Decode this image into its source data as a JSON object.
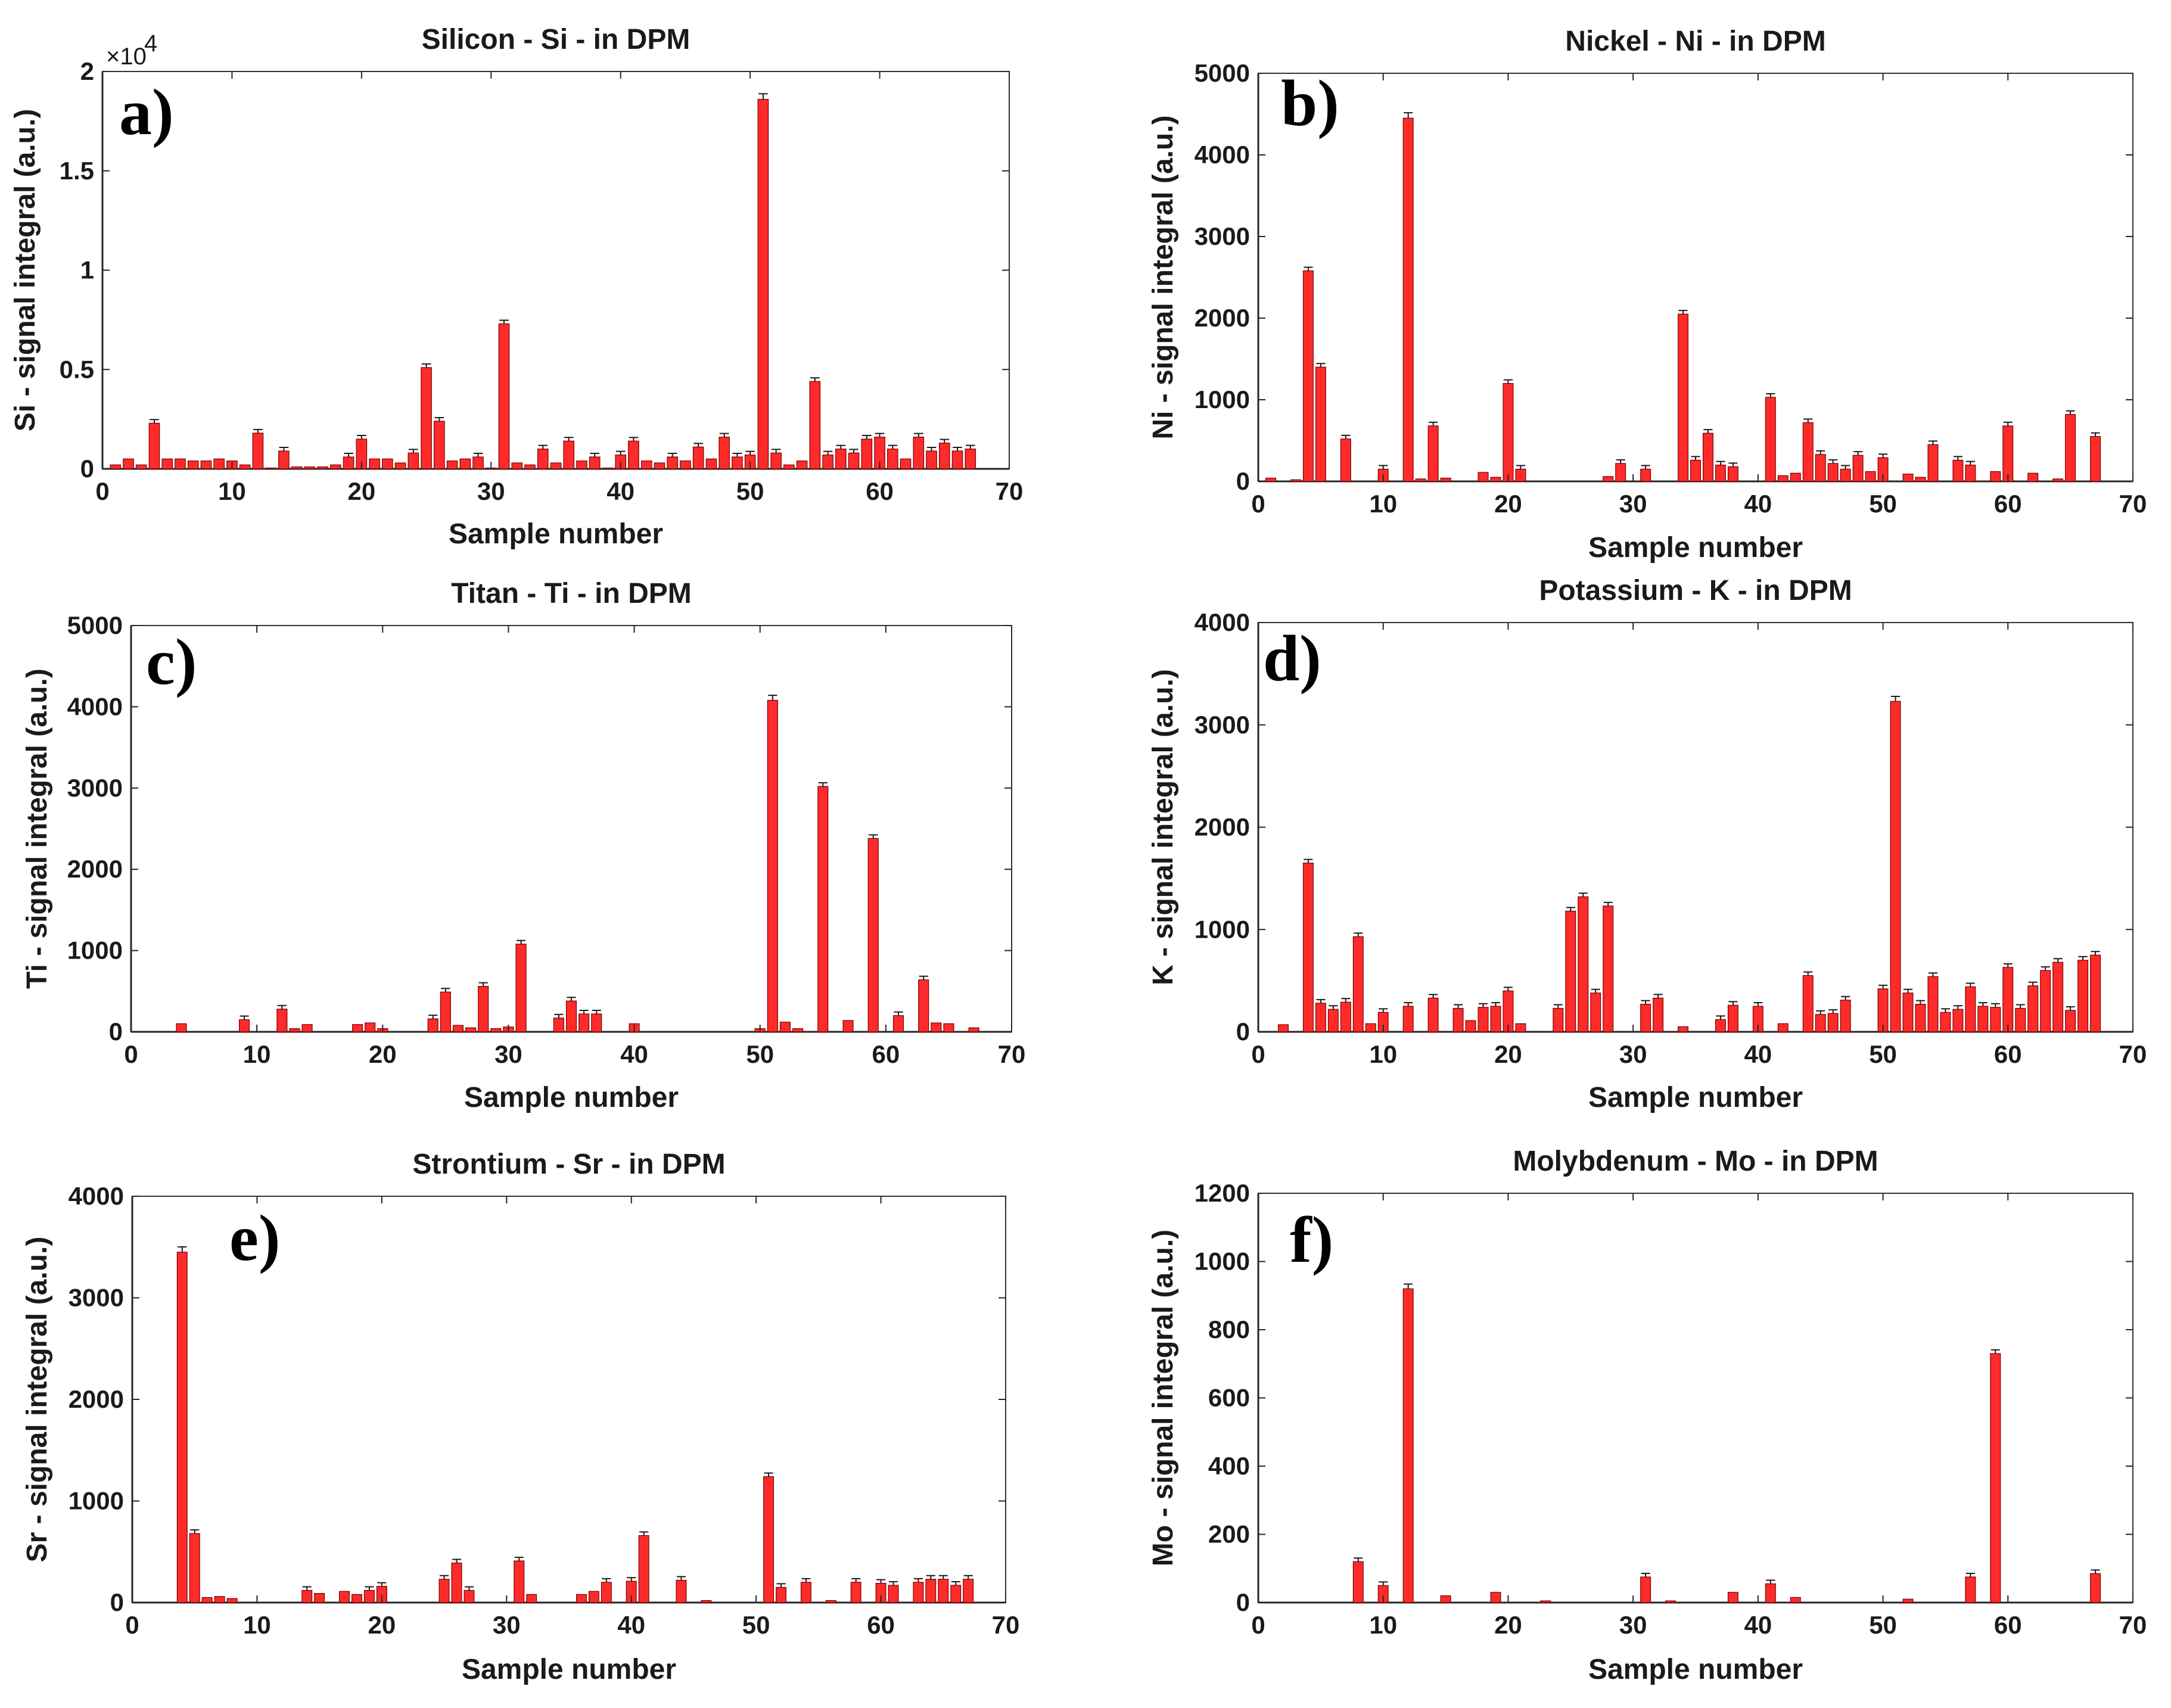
{
  "chart_data": [
    {
      "type": "bar",
      "panel_label": "a)",
      "title": "Silicon - Si - in DPM",
      "xlabel": "Sample number",
      "ylabel": "Si - signal integral (a.u.)",
      "xlim": [
        0,
        70
      ],
      "ylim": [
        0,
        2
      ],
      "x_ticks": [
        "0",
        "10",
        "20",
        "30",
        "40",
        "50",
        "60",
        "70"
      ],
      "y_ticks": [
        "0",
        "0.5",
        "1",
        "1.5",
        "2"
      ],
      "y_multiplier": "×10",
      "y_exponent": "4",
      "color": "#ff2a2a",
      "x": [
        1,
        2,
        3,
        4,
        5,
        6,
        7,
        8,
        9,
        10,
        11,
        12,
        13,
        14,
        15,
        16,
        17,
        18,
        19,
        20,
        21,
        22,
        23,
        24,
        25,
        26,
        27,
        28,
        29,
        30,
        31,
        32,
        33,
        34,
        35,
        36,
        37,
        38,
        39,
        40,
        41,
        42,
        43,
        44,
        45,
        46,
        47,
        48,
        49,
        50,
        51,
        52,
        53,
        54,
        55,
        56,
        57,
        58,
        59,
        60,
        61,
        62,
        63,
        64,
        65,
        66,
        67
      ],
      "values": [
        0.02,
        0.05,
        0.02,
        0.23,
        0.05,
        0.05,
        0.04,
        0.04,
        0.05,
        0.04,
        0.02,
        0.18,
        0.0,
        0.09,
        0.01,
        0.01,
        0.01,
        0.02,
        0.06,
        0.15,
        0.05,
        0.05,
        0.03,
        0.08,
        0.51,
        0.24,
        0.04,
        0.05,
        0.06,
        0.0,
        0.73,
        0.03,
        0.02,
        0.1,
        0.03,
        0.14,
        0.04,
        0.06,
        0.0,
        0.07,
        0.14,
        0.04,
        0.03,
        0.06,
        0.04,
        0.11,
        0.05,
        0.16,
        0.06,
        0.07,
        1.86,
        0.08,
        0.02,
        0.04,
        0.44,
        0.07,
        0.1,
        0.08,
        0.15,
        0.16,
        0.1,
        0.05,
        0.16,
        0.09,
        0.13,
        0.09,
        0.1
      ]
    },
    {
      "type": "bar",
      "panel_label": "b)",
      "title": "Nickel - Ni - in DPM",
      "xlabel": "Sample number",
      "ylabel": "Ni - signal integral (a.u.)",
      "xlim": [
        0,
        70
      ],
      "ylim": [
        0,
        5000
      ],
      "x_ticks": [
        "0",
        "10",
        "20",
        "30",
        "40",
        "50",
        "60",
        "70"
      ],
      "y_ticks": [
        "0",
        "1000",
        "2000",
        "3000",
        "4000",
        "5000"
      ],
      "color": "#ff2a2a",
      "x": [
        1,
        3,
        4,
        5,
        7,
        10,
        12,
        13,
        14,
        15,
        18,
        19,
        20,
        21,
        28,
        29,
        31,
        34,
        35,
        36,
        37,
        38,
        41,
        42,
        43,
        44,
        45,
        46,
        47,
        48,
        49,
        50,
        52,
        53,
        54,
        56,
        57,
        59,
        60,
        62,
        64,
        65,
        67
      ],
      "values": [
        40,
        20,
        2580,
        1400,
        520,
        150,
        4450,
        30,
        680,
        40,
        110,
        50,
        1200,
        150,
        60,
        220,
        150,
        2050,
        260,
        590,
        200,
        180,
        1030,
        70,
        100,
        720,
        330,
        220,
        150,
        320,
        120,
        290,
        90,
        50,
        450,
        260,
        200,
        120,
        680,
        100,
        30,
        820,
        550
      ]
    },
    {
      "type": "bar",
      "panel_label": "c)",
      "title": "Titan - Ti - in DPM",
      "xlabel": "Sample number",
      "ylabel": "Ti - signal integral (a.u.)",
      "xlim": [
        0,
        70
      ],
      "ylim": [
        0,
        5000
      ],
      "x_ticks": [
        "0",
        "10",
        "20",
        "30",
        "40",
        "50",
        "60",
        "70"
      ],
      "y_ticks": [
        "0",
        "1000",
        "2000",
        "3000",
        "4000",
        "5000"
      ],
      "color": "#ff2a2a",
      "x": [
        4,
        9,
        12,
        13,
        14,
        18,
        19,
        20,
        24,
        25,
        26,
        27,
        28,
        29,
        30,
        31,
        34,
        35,
        36,
        37,
        40,
        50,
        51,
        52,
        53,
        55,
        57,
        59,
        61,
        63,
        64,
        65,
        67
      ],
      "values": [
        100,
        150,
        280,
        40,
        90,
        90,
        110,
        40,
        160,
        490,
        80,
        50,
        560,
        40,
        60,
        1080,
        170,
        380,
        220,
        220,
        100,
        40,
        4080,
        120,
        40,
        3020,
        140,
        2380,
        200,
        640,
        110,
        100,
        50
      ]
    },
    {
      "type": "bar",
      "panel_label": "d)",
      "title": "Potassium - K - in DPM",
      "xlabel": "Sample number",
      "ylabel": "K - signal integral (a.u.)",
      "xlim": [
        0,
        70
      ],
      "ylim": [
        0,
        4000
      ],
      "x_ticks": [
        "0",
        "10",
        "20",
        "30",
        "40",
        "50",
        "60",
        "70"
      ],
      "y_ticks": [
        "0",
        "1000",
        "2000",
        "3000",
        "4000"
      ],
      "color": "#ff2a2a",
      "x": [
        2,
        4,
        5,
        6,
        7,
        8,
        9,
        10,
        12,
        14,
        16,
        17,
        18,
        19,
        20,
        21,
        24,
        25,
        26,
        27,
        28,
        31,
        32,
        34,
        37,
        38,
        40,
        42,
        44,
        45,
        46,
        47,
        50,
        51,
        52,
        53,
        54,
        55,
        56,
        57,
        58,
        59,
        60,
        61,
        62,
        63,
        64,
        65,
        66,
        67
      ],
      "values": [
        70,
        1650,
        280,
        220,
        290,
        930,
        80,
        190,
        250,
        330,
        230,
        110,
        240,
        250,
        400,
        80,
        230,
        1180,
        1320,
        380,
        1230,
        270,
        330,
        50,
        120,
        260,
        250,
        80,
        550,
        170,
        180,
        310,
        420,
        3230,
        380,
        270,
        540,
        190,
        220,
        440,
        250,
        240,
        630,
        230,
        450,
        600,
        680,
        210,
        700,
        750
      ]
    },
    {
      "type": "bar",
      "panel_label": "e)",
      "title": "Strontium - Sr - in DPM",
      "xlabel": "Sample number",
      "ylabel": "Sr - signal integral (a.u.)",
      "xlim": [
        0,
        70
      ],
      "ylim": [
        0,
        4000
      ],
      "x_ticks": [
        "0",
        "10",
        "20",
        "30",
        "40",
        "50",
        "60",
        "70"
      ],
      "y_ticks": [
        "0",
        "1000",
        "2000",
        "3000",
        "4000"
      ],
      "color": "#ff2a2a",
      "x": [
        4,
        5,
        6,
        7,
        8,
        14,
        15,
        17,
        18,
        19,
        20,
        25,
        26,
        27,
        31,
        32,
        36,
        37,
        38,
        40,
        41,
        44,
        46,
        51,
        52,
        54,
        56,
        58,
        60,
        61,
        63,
        64,
        65,
        66,
        67
      ],
      "values": [
        3450,
        680,
        50,
        60,
        40,
        120,
        90,
        110,
        80,
        120,
        160,
        230,
        390,
        120,
        410,
        80,
        80,
        110,
        200,
        210,
        660,
        220,
        20,
        1240,
        150,
        200,
        20,
        200,
        190,
        170,
        200,
        230,
        230,
        170,
        230
      ]
    },
    {
      "type": "bar",
      "panel_label": "f)",
      "title": "Molybdenum - Mo - in DPM",
      "xlabel": "Sample number",
      "ylabel": "Mo - signal integral (a.u.)",
      "xlim": [
        0,
        70
      ],
      "ylim": [
        0,
        1200
      ],
      "x_ticks": [
        "0",
        "10",
        "20",
        "30",
        "40",
        "50",
        "60",
        "70"
      ],
      "y_ticks": [
        "0",
        "200",
        "400",
        "600",
        "800",
        "1000",
        "1200"
      ],
      "color": "#ff2a2a",
      "x": [
        8,
        10,
        12,
        15,
        19,
        23,
        31,
        33,
        38,
        41,
        43,
        52,
        57,
        59,
        67
      ],
      "values": [
        120,
        50,
        920,
        20,
        30,
        5,
        75,
        5,
        30,
        55,
        15,
        10,
        75,
        730,
        85
      ]
    }
  ]
}
